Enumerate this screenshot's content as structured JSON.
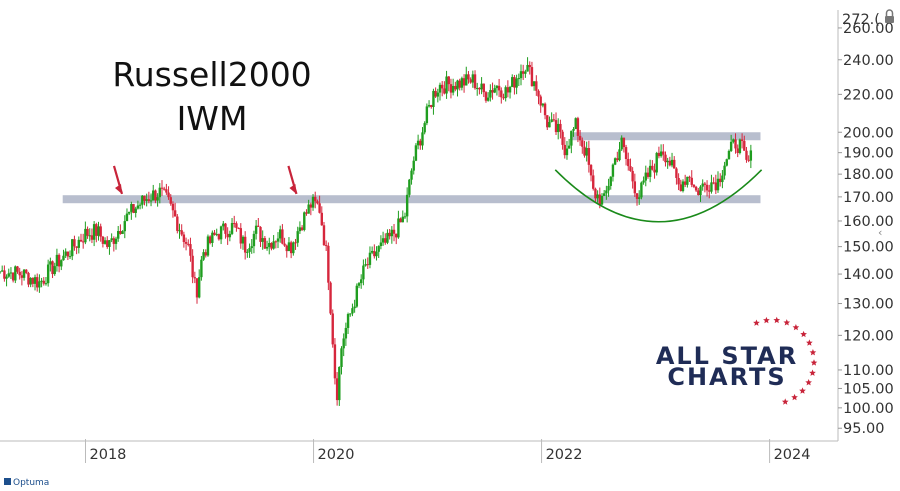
{
  "chart_data": {
    "type": "candlestick",
    "title": "Russell2000",
    "subtitle": "IWM",
    "y_scale": "log",
    "ylim": [
      92,
      272
    ],
    "y_ticks": [
      95,
      100,
      105,
      110,
      120,
      130,
      140,
      150,
      160,
      170,
      180,
      190,
      200,
      220,
      240,
      260
    ],
    "y_tick_labels": [
      "95.00",
      "100.00",
      "105.00",
      "110.00",
      "120.00",
      "130.00",
      "140.00",
      "150.00",
      "160.00",
      "170.00",
      "180.00",
      "190.00",
      "200.00",
      "220.00",
      "240.00",
      "260.00"
    ],
    "y_top_label": "272.(",
    "xlim": [
      2017.25,
      2024.6
    ],
    "x_ticks": [
      2018,
      2020,
      2022,
      2024
    ],
    "x_tick_labels": [
      "2018",
      "2020",
      "2022",
      "2024"
    ],
    "grid": false,
    "colors": {
      "up": "#1f9d1f",
      "down": "#d6263c",
      "band": "#b8bece",
      "arc": "#1a8a1a",
      "arrow": "#c8243a",
      "brand": "#1f2c56",
      "star": "#c8243a"
    },
    "series": [
      {
        "values": [
          [
            2017.25,
            141
          ],
          [
            2017.45,
            140
          ],
          [
            2017.6,
            137
          ],
          [
            2017.7,
            142
          ],
          [
            2017.85,
            148
          ],
          [
            2018.0,
            155
          ],
          [
            2018.1,
            156
          ],
          [
            2018.2,
            150
          ],
          [
            2018.35,
            161
          ],
          [
            2018.45,
            166
          ],
          [
            2018.55,
            170
          ],
          [
            2018.65,
            172
          ],
          [
            2018.72,
            168
          ],
          [
            2018.82,
            158
          ],
          [
            2018.9,
            150
          ],
          [
            2018.97,
            133
          ],
          [
            2019.03,
            148
          ],
          [
            2019.15,
            155
          ],
          [
            2019.3,
            158
          ],
          [
            2019.4,
            150
          ],
          [
            2019.5,
            156
          ],
          [
            2019.6,
            151
          ],
          [
            2019.7,
            155
          ],
          [
            2019.8,
            150
          ],
          [
            2019.9,
            160
          ],
          [
            2019.98,
            167
          ],
          [
            2020.05,
            166
          ],
          [
            2020.12,
            145
          ],
          [
            2020.2,
            102
          ],
          [
            2020.25,
            118
          ],
          [
            2020.35,
            130
          ],
          [
            2020.45,
            142
          ],
          [
            2020.55,
            148
          ],
          [
            2020.65,
            152
          ],
          [
            2020.75,
            158
          ],
          [
            2020.8,
            162
          ],
          [
            2020.87,
            185
          ],
          [
            2020.95,
            200
          ],
          [
            2021.05,
            220
          ],
          [
            2021.1,
            225
          ],
          [
            2021.25,
            226
          ],
          [
            2021.4,
            228
          ],
          [
            2021.5,
            220
          ],
          [
            2021.6,
            225
          ],
          [
            2021.7,
            221
          ],
          [
            2021.8,
            232
          ],
          [
            2021.85,
            238
          ],
          [
            2021.95,
            225
          ],
          [
            2022.05,
            205
          ],
          [
            2022.15,
            200
          ],
          [
            2022.2,
            192
          ],
          [
            2022.3,
            203
          ],
          [
            2022.4,
            188
          ],
          [
            2022.45,
            172
          ],
          [
            2022.55,
            168
          ],
          [
            2022.62,
            183
          ],
          [
            2022.7,
            195
          ],
          [
            2022.75,
            185
          ],
          [
            2022.85,
            170
          ],
          [
            2022.92,
            178
          ],
          [
            2023.0,
            185
          ],
          [
            2023.05,
            193
          ],
          [
            2023.12,
            186
          ],
          [
            2023.2,
            175
          ],
          [
            2023.3,
            180
          ],
          [
            2023.35,
            172
          ],
          [
            2023.45,
            176
          ],
          [
            2023.55,
            177
          ],
          [
            2023.6,
            185
          ],
          [
            2023.7,
            195
          ],
          [
            2023.75,
            193
          ],
          [
            2023.8,
            184
          ],
          [
            2023.85,
            189
          ]
        ]
      }
    ],
    "annotations": {
      "resistance_band_price": 169,
      "range_top_price": 198,
      "arc_low_price": 158
    }
  },
  "brand": {
    "line1": "ALL STAR",
    "line2": "CHARTS",
    "footer": "Optuma"
  }
}
